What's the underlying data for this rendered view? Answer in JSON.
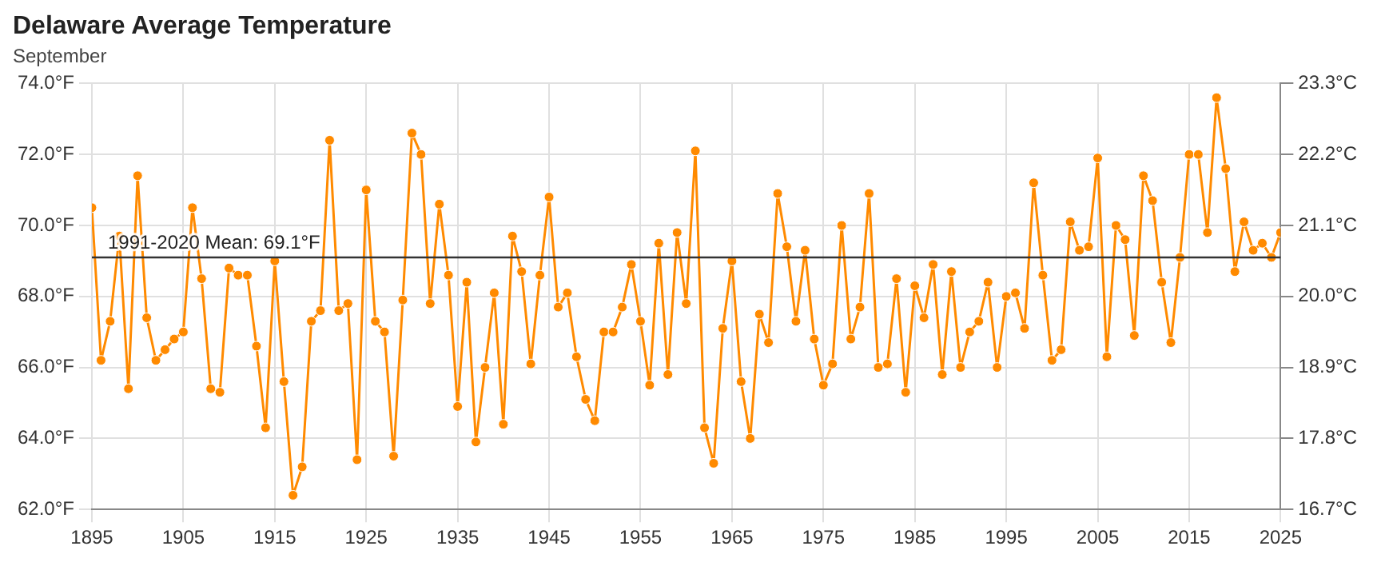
{
  "chart_data": {
    "type": "line",
    "title": "Delaware Average Temperature",
    "subtitle": "September",
    "x": [
      1895,
      1896,
      1897,
      1898,
      1899,
      1900,
      1901,
      1902,
      1903,
      1904,
      1905,
      1906,
      1907,
      1908,
      1909,
      1910,
      1911,
      1912,
      1913,
      1914,
      1915,
      1916,
      1917,
      1918,
      1919,
      1920,
      1921,
      1922,
      1923,
      1924,
      1925,
      1926,
      1927,
      1928,
      1929,
      1930,
      1931,
      1932,
      1933,
      1934,
      1935,
      1936,
      1937,
      1938,
      1939,
      1940,
      1941,
      1942,
      1943,
      1944,
      1945,
      1946,
      1947,
      1948,
      1949,
      1950,
      1951,
      1952,
      1953,
      1954,
      1955,
      1956,
      1957,
      1958,
      1959,
      1960,
      1961,
      1962,
      1963,
      1964,
      1965,
      1966,
      1967,
      1968,
      1969,
      1970,
      1971,
      1972,
      1973,
      1974,
      1975,
      1976,
      1977,
      1978,
      1979,
      1980,
      1981,
      1982,
      1983,
      1984,
      1985,
      1986,
      1987,
      1988,
      1989,
      1990,
      1991,
      1992,
      1993,
      1994,
      1995,
      1996,
      1997,
      1998,
      1999,
      2000,
      2001,
      2002,
      2003,
      2004,
      2005,
      2006,
      2007,
      2008,
      2009,
      2010,
      2011,
      2012,
      2013,
      2014,
      2015,
      2016,
      2017,
      2018,
      2019,
      2020,
      2021,
      2022,
      2023,
      2024,
      2025
    ],
    "series": [
      {
        "color": "#ff8a00",
        "values": [
          70.5,
          66.2,
          67.3,
          69.7,
          65.4,
          71.4,
          67.4,
          66.2,
          66.5,
          66.8,
          67.0,
          70.5,
          68.5,
          65.4,
          65.3,
          68.8,
          68.6,
          68.6,
          66.6,
          64.3,
          69.0,
          65.6,
          62.4,
          63.2,
          67.3,
          67.6,
          72.4,
          67.6,
          67.8,
          63.4,
          71.0,
          67.3,
          67.0,
          63.5,
          67.9,
          72.6,
          72.0,
          67.8,
          70.6,
          68.6,
          64.9,
          68.4,
          63.9,
          66.0,
          68.1,
          64.4,
          69.7,
          68.7,
          66.1,
          68.6,
          70.8,
          67.7,
          68.1,
          66.3,
          65.1,
          64.5,
          67.0,
          67.0,
          67.7,
          68.9,
          67.3,
          65.5,
          69.5,
          65.8,
          69.8,
          67.8,
          72.1,
          64.3,
          63.3,
          67.1,
          69.0,
          65.6,
          64.0,
          67.5,
          66.7,
          70.9,
          69.4,
          67.3,
          69.3,
          66.8,
          65.5,
          66.1,
          70.0,
          66.8,
          67.7,
          70.9,
          66.0,
          66.1,
          68.5,
          65.3,
          68.3,
          67.4,
          68.9,
          65.8,
          68.7,
          66.0,
          67.0,
          67.3,
          68.4,
          66.0,
          68.0,
          68.1,
          67.1,
          71.2,
          68.6,
          66.2,
          66.5,
          70.1,
          69.3,
          69.4,
          71.9,
          66.3,
          70.0,
          69.6,
          66.9,
          71.4,
          70.7,
          68.4,
          66.7,
          69.1,
          72.0,
          72.0,
          69.8,
          73.6,
          71.6,
          68.7,
          70.1,
          69.3,
          69.5,
          69.1,
          69.8
        ]
      }
    ],
    "xlim": [
      1895,
      2025
    ],
    "xticks": [
      1895,
      1905,
      1915,
      1925,
      1935,
      1945,
      1955,
      1965,
      1975,
      1985,
      1995,
      2005,
      2015,
      2025
    ],
    "ylim": [
      62,
      74
    ],
    "yticks": [
      {
        "value": 62,
        "label": "62.0°F"
      },
      {
        "value": 64,
        "label": "64.0°F"
      },
      {
        "value": 66,
        "label": "66.0°F"
      },
      {
        "value": 68,
        "label": "68.0°F"
      },
      {
        "value": 70,
        "label": "70.0°F"
      },
      {
        "value": 72,
        "label": "72.0°F"
      },
      {
        "value": 74,
        "label": "74.0°F"
      }
    ],
    "y2lim": [
      16.67,
      23.33
    ],
    "y2ticks": [
      {
        "value": 16.67,
        "label": "16.7°C"
      },
      {
        "value": 17.78,
        "label": "17.8°C"
      },
      {
        "value": 18.89,
        "label": "18.9°C"
      },
      {
        "value": 20,
        "label": "20.0°C"
      },
      {
        "value": 21.11,
        "label": "21.1°C"
      },
      {
        "value": 22.22,
        "label": "22.2°C"
      },
      {
        "value": 23.33,
        "label": "23.3°C"
      }
    ],
    "ref_lines": [
      {
        "axis": "y",
        "value": 69.1,
        "label": "1991-2020 Mean: 69.1°F",
        "color": "#333333"
      }
    ],
    "grid": true,
    "legend": false,
    "marker": "circle",
    "line_style": "solid"
  }
}
